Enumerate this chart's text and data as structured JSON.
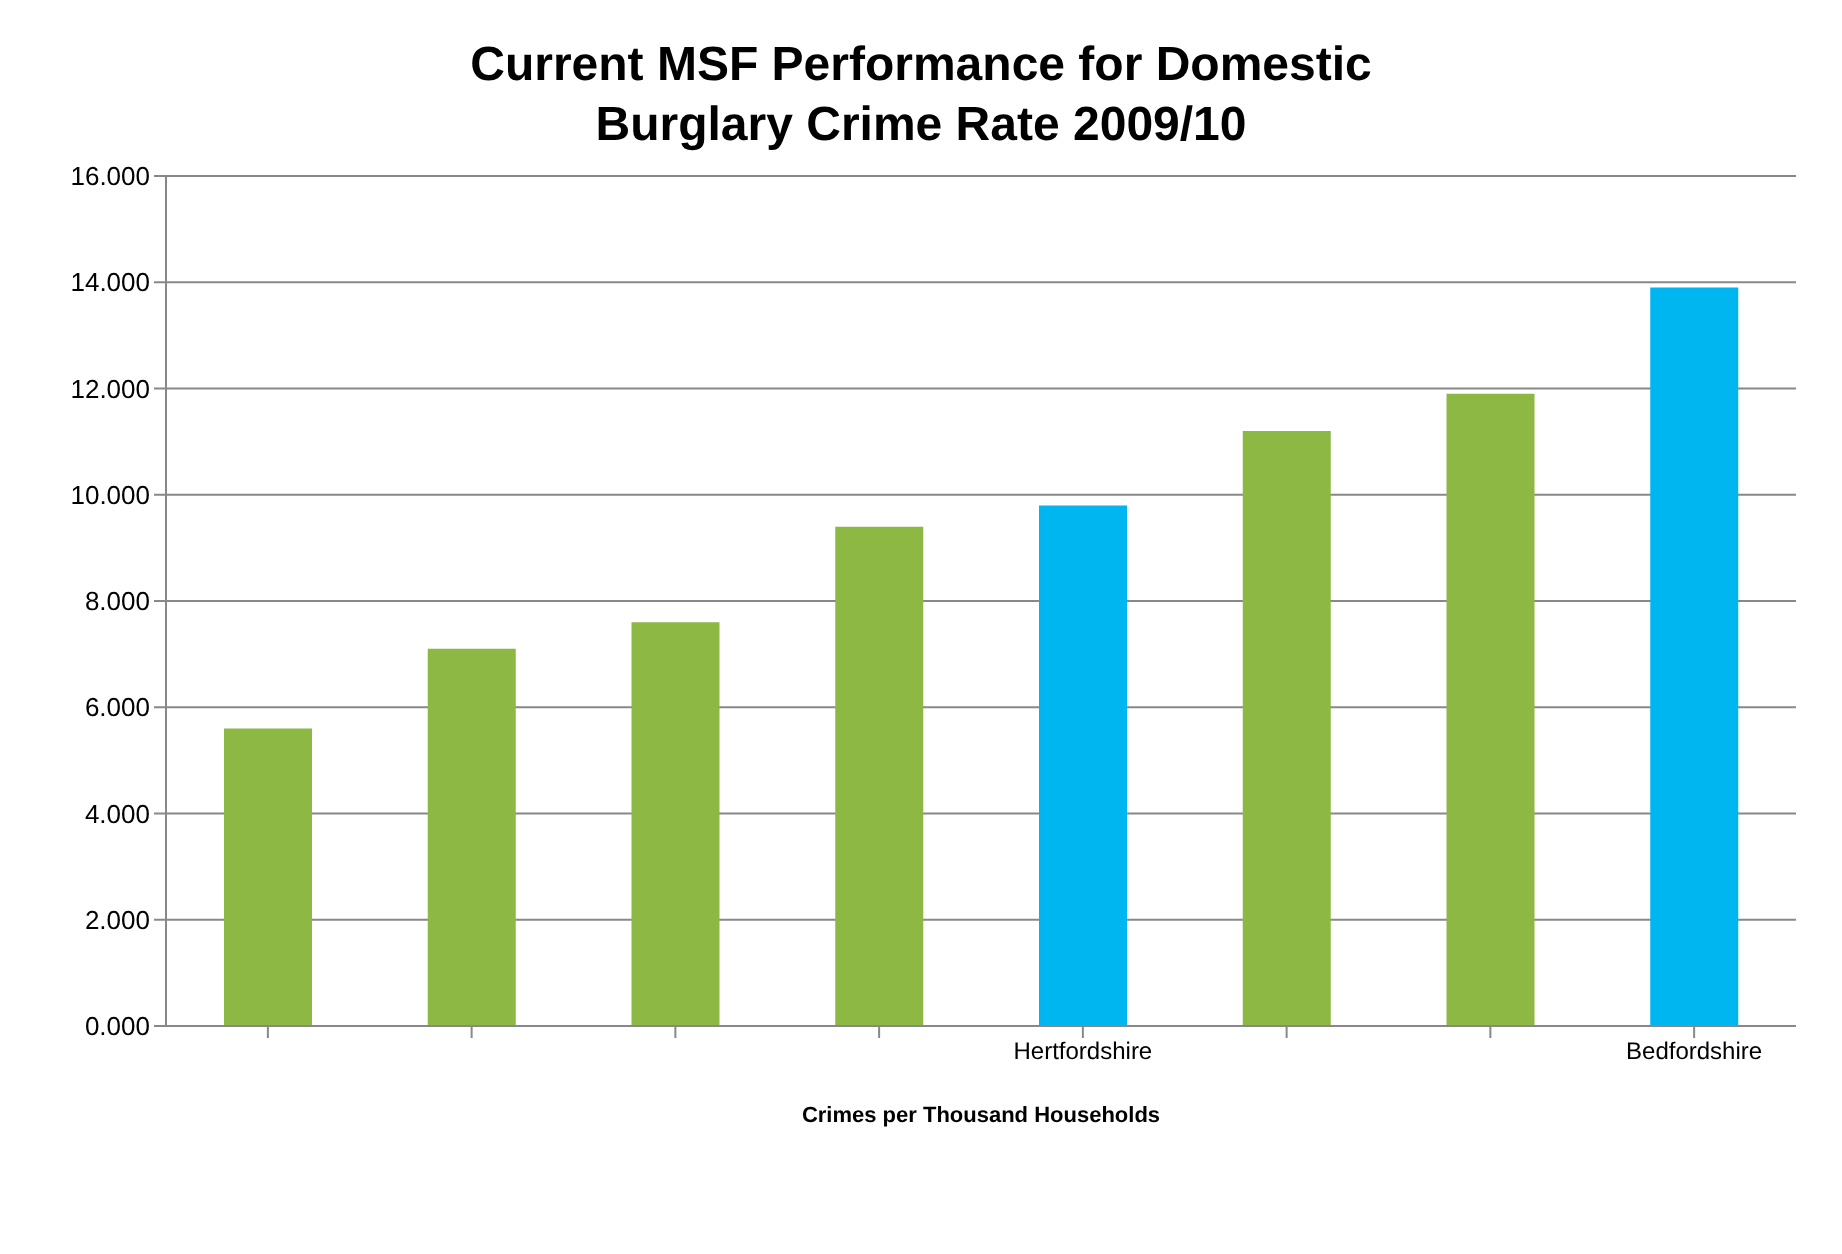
{
  "chart_data": {
    "type": "bar",
    "title": "Current MSF Performance for  Domestic Burglary Crime Rate 2009/10",
    "xlabel": "Crimes per Thousand  Households",
    "categories": [
      null,
      null,
      null,
      null,
      "Hertfordshire",
      null,
      null,
      "Bedfordshire"
    ],
    "values": [
      5.6,
      7.1,
      7.6,
      9.4,
      9.8,
      11.2,
      11.9,
      13.9
    ],
    "colors": [
      "#8db843",
      "#8db843",
      "#8db843",
      "#8db843",
      "#00b6f0",
      "#8db843",
      "#8db843",
      "#00b6f0"
    ],
    "ylim": [
      0,
      16
    ],
    "yticks": [
      {
        "value": 0,
        "label": "0.000"
      },
      {
        "value": 2,
        "label": "2.000"
      },
      {
        "value": 4,
        "label": "4.000"
      },
      {
        "value": 6,
        "label": "6.000"
      },
      {
        "value": 8,
        "label": "8.000"
      },
      {
        "value": 10,
        "label": "10.000"
      },
      {
        "value": 12,
        "label": "12.000"
      },
      {
        "value": 14,
        "label": "14.000"
      },
      {
        "value": 16,
        "label": "16.000"
      }
    ],
    "grid": "y",
    "legend": false
  }
}
